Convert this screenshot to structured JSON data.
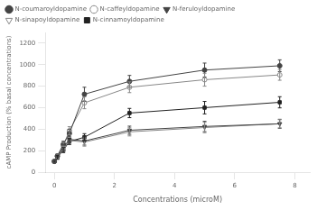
{
  "chart_data": {
    "type": "line",
    "x": [
      0.0,
      0.1,
      0.3,
      0.5,
      1.0,
      2.5,
      5.0,
      7.5
    ],
    "series": [
      {
        "name": "N-coumaroyldopamine",
        "color": "#444444",
        "marker": "circle",
        "line_style": "solid",
        "values": [
          100,
          150,
          260,
          360,
          725,
          845,
          950,
          990
        ],
        "yerr": [
          8,
          18,
          28,
          38,
          65,
          55,
          65,
          55
        ]
      },
      {
        "name": "N-caffeyldopamine",
        "color": "#888888",
        "marker": "circle_open",
        "line_style": "solid",
        "values": [
          100,
          148,
          250,
          385,
          645,
          790,
          860,
          905
        ],
        "yerr": [
          8,
          18,
          28,
          38,
          55,
          50,
          60,
          50
        ]
      },
      {
        "name": "N-feruloyldopamine",
        "color": "#444444",
        "marker": "triangle_down",
        "line_style": "solid",
        "values": [
          100,
          140,
          230,
          305,
          290,
          390,
          425,
          450
        ],
        "yerr": [
          8,
          18,
          28,
          28,
          38,
          38,
          48,
          42
        ]
      },
      {
        "name": "N-sinapoyldopamine",
        "color": "#888888",
        "marker": "triangle_down_open",
        "line_style": "solid",
        "values": [
          100,
          138,
          218,
          295,
          280,
          375,
          415,
          450
        ],
        "yerr": [
          8,
          18,
          23,
          28,
          38,
          38,
          48,
          38
        ]
      },
      {
        "name": "N-cinnamoyldopamine",
        "color": "#222222",
        "marker": "square",
        "line_style": "solid",
        "values": [
          100,
          138,
          205,
          285,
          325,
          550,
          600,
          650
        ],
        "yerr": [
          8,
          18,
          23,
          28,
          33,
          43,
          58,
          52
        ]
      }
    ],
    "xlabel": "Concentrations (microM)",
    "ylabel": "cAMP Production (% basal concentrations)",
    "xlim": [
      -0.3,
      8.5
    ],
    "ylim": [
      0,
      1300
    ],
    "xticks": [
      0,
      2,
      4,
      6,
      8
    ],
    "yticks": [
      0,
      200,
      400,
      600,
      800,
      1000,
      1200
    ],
    "grid": false,
    "legend": "upper left"
  }
}
